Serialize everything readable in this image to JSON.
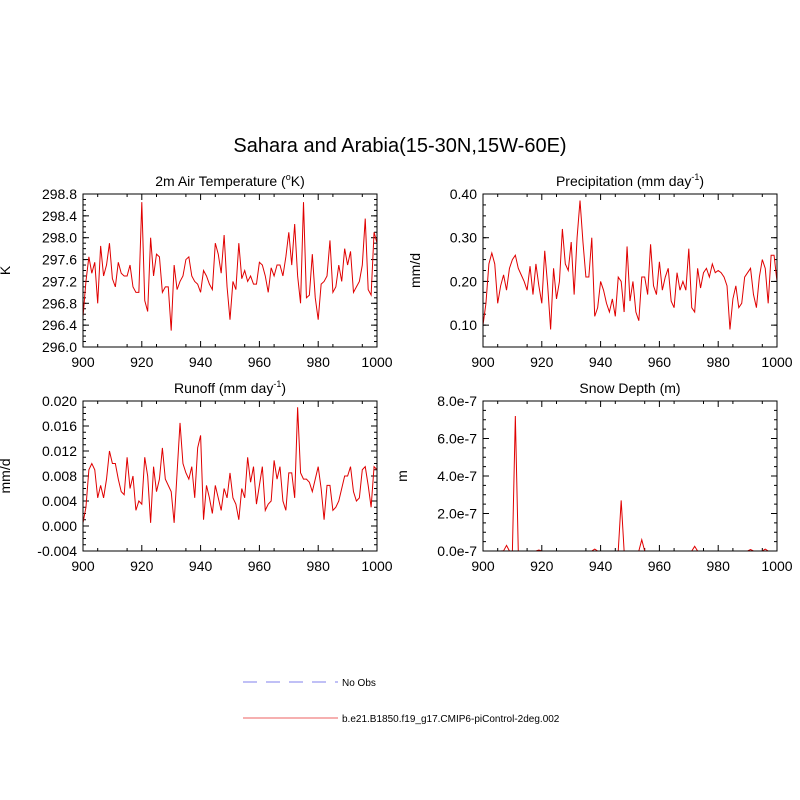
{
  "title": "Sahara and Arabia(15-30N,15W-60E)",
  "colors": {
    "model": "#e00000",
    "obs": "#9a9af0",
    "axis": "#000000"
  },
  "legend": {
    "obs_label": "No Obs",
    "model_label": "b.e21.B1850.f19_g17.CMIP6-piControl-2deg.002"
  },
  "chart_data": [
    {
      "type": "line",
      "title": "2m Air Temperature (",
      "title_sup": "o",
      "title_post": "K)",
      "ylabel": "K",
      "xlim": [
        900,
        1000
      ],
      "ylim": [
        296.0,
        298.8
      ],
      "xticks": [
        "900",
        "920",
        "940",
        "960",
        "980",
        "1000"
      ],
      "yticks": [
        "296.0",
        "296.4",
        "296.8",
        "297.2",
        "297.6",
        "298.0",
        "298.4",
        "298.8"
      ],
      "series": [
        {
          "x": [
            900,
            901,
            902,
            903,
            904,
            905,
            906,
            907,
            908,
            909,
            910,
            911,
            912,
            913,
            914,
            915,
            916,
            917,
            918,
            919,
            920,
            921,
            922,
            923,
            924,
            925,
            926,
            927,
            928,
            929,
            930,
            931,
            932,
            933,
            934,
            935,
            936,
            937,
            938,
            939,
            940,
            941,
            942,
            943,
            944,
            945,
            946,
            947,
            948,
            949,
            950,
            951,
            952,
            953,
            954,
            955,
            956,
            957,
            958,
            959,
            960,
            961,
            962,
            963,
            964,
            965,
            966,
            967,
            968,
            969,
            970,
            971,
            972,
            973,
            974,
            975,
            976,
            977,
            978,
            979,
            980,
            981,
            982,
            983,
            984,
            985,
            986,
            987,
            988,
            989,
            990,
            991,
            992,
            993,
            994,
            995,
            996,
            997,
            998,
            999,
            1000
          ],
          "values": [
            296.55,
            297.2,
            297.65,
            297.35,
            297.55,
            296.8,
            297.85,
            297.3,
            297.5,
            297.9,
            297.25,
            297.1,
            297.55,
            297.35,
            297.3,
            297.3,
            297.5,
            297.1,
            297.0,
            297.0,
            298.65,
            296.85,
            296.65,
            298.0,
            297.3,
            297.7,
            297.65,
            297.0,
            297.1,
            297.1,
            296.3,
            297.5,
            297.05,
            297.2,
            297.3,
            297.6,
            297.65,
            297.3,
            297.2,
            297.15,
            297.0,
            297.4,
            297.3,
            297.15,
            297.05,
            297.9,
            297.7,
            297.35,
            298.05,
            297.1,
            296.5,
            297.2,
            297.05,
            297.9,
            297.25,
            297.4,
            297.2,
            297.3,
            297.15,
            297.15,
            297.55,
            297.5,
            297.3,
            297.0,
            297.45,
            297.3,
            297.5,
            297.5,
            297.3,
            297.65,
            298.1,
            297.5,
            298.25,
            297.3,
            296.8,
            298.65,
            296.9,
            296.95,
            297.7,
            296.9,
            296.5,
            297.15,
            297.2,
            297.3,
            297.95,
            297.0,
            297.1,
            297.5,
            297.2,
            297.8,
            297.5,
            297.75,
            297.0,
            297.1,
            297.2,
            297.5,
            298.35,
            297.05,
            296.95,
            298.1,
            297.9
          ]
        }
      ]
    },
    {
      "type": "line",
      "title": "Precipitation (mm day",
      "title_sup": "-1",
      "title_post": ")",
      "ylabel": "mm/d",
      "xlim": [
        900,
        1000
      ],
      "ylim": [
        0.05,
        0.4
      ],
      "xticks": [
        "900",
        "920",
        "940",
        "960",
        "980",
        "1000"
      ],
      "yticks": [
        "0.10",
        "0.20",
        "0.30",
        "0.40"
      ],
      "series": [
        {
          "x": [
            900,
            901,
            902,
            903,
            904,
            905,
            906,
            907,
            908,
            909,
            910,
            911,
            912,
            913,
            914,
            915,
            916,
            917,
            918,
            919,
            920,
            921,
            922,
            923,
            924,
            925,
            926,
            927,
            928,
            929,
            930,
            931,
            932,
            933,
            934,
            935,
            936,
            937,
            938,
            939,
            940,
            941,
            942,
            943,
            944,
            945,
            946,
            947,
            948,
            949,
            950,
            951,
            952,
            953,
            954,
            955,
            956,
            957,
            958,
            959,
            960,
            961,
            962,
            963,
            964,
            965,
            966,
            967,
            968,
            969,
            970,
            971,
            972,
            973,
            974,
            975,
            976,
            977,
            978,
            979,
            980,
            981,
            982,
            983,
            984,
            985,
            986,
            987,
            988,
            989,
            990,
            991,
            992,
            993,
            994,
            995,
            996,
            997,
            998,
            999,
            1000
          ],
          "values": [
            0.1,
            0.15,
            0.24,
            0.265,
            0.24,
            0.15,
            0.19,
            0.215,
            0.18,
            0.23,
            0.25,
            0.26,
            0.23,
            0.215,
            0.2,
            0.18,
            0.235,
            0.17,
            0.24,
            0.19,
            0.15,
            0.27,
            0.19,
            0.09,
            0.23,
            0.16,
            0.2,
            0.32,
            0.24,
            0.225,
            0.29,
            0.17,
            0.3,
            0.385,
            0.29,
            0.21,
            0.21,
            0.3,
            0.12,
            0.14,
            0.2,
            0.18,
            0.15,
            0.13,
            0.16,
            0.12,
            0.21,
            0.2,
            0.13,
            0.28,
            0.155,
            0.2,
            0.13,
            0.11,
            0.21,
            0.21,
            0.17,
            0.285,
            0.19,
            0.17,
            0.245,
            0.18,
            0.21,
            0.23,
            0.155,
            0.14,
            0.22,
            0.18,
            0.2,
            0.18,
            0.275,
            0.14,
            0.13,
            0.23,
            0.185,
            0.22,
            0.23,
            0.21,
            0.24,
            0.22,
            0.225,
            0.22,
            0.21,
            0.19,
            0.09,
            0.16,
            0.19,
            0.14,
            0.15,
            0.21,
            0.22,
            0.23,
            0.17,
            0.14,
            0.21,
            0.25,
            0.23,
            0.15,
            0.26,
            0.26,
            0.2
          ]
        }
      ]
    },
    {
      "type": "line",
      "title": "Runoff (mm day",
      "title_sup": "-1",
      "title_post": ")",
      "ylabel": "mm/d",
      "xlim": [
        900,
        1000
      ],
      "ylim": [
        -0.004,
        0.02
      ],
      "xticks": [
        "900",
        "920",
        "940",
        "960",
        "980",
        "1000"
      ],
      "yticks": [
        "-0.004",
        "0.000",
        "0.004",
        "0.008",
        "0.012",
        "0.016",
        "0.020"
      ],
      "series": [
        {
          "x": [
            900,
            901,
            902,
            903,
            904,
            905,
            906,
            907,
            908,
            909,
            910,
            911,
            912,
            913,
            914,
            915,
            916,
            917,
            918,
            919,
            920,
            921,
            922,
            923,
            924,
            925,
            926,
            927,
            928,
            929,
            930,
            931,
            932,
            933,
            934,
            935,
            936,
            937,
            938,
            939,
            940,
            941,
            942,
            943,
            944,
            945,
            946,
            947,
            948,
            949,
            950,
            951,
            952,
            953,
            954,
            955,
            956,
            957,
            958,
            959,
            960,
            961,
            962,
            963,
            964,
            965,
            966,
            967,
            968,
            969,
            970,
            971,
            972,
            973,
            974,
            975,
            976,
            977,
            978,
            979,
            980,
            981,
            982,
            983,
            984,
            985,
            986,
            987,
            988,
            989,
            990,
            991,
            992,
            993,
            994,
            995,
            996,
            997,
            998,
            999,
            1000
          ],
          "values": [
            0.0005,
            0.003,
            0.009,
            0.01,
            0.009,
            0.0045,
            0.0065,
            0.0045,
            0.0075,
            0.012,
            0.01,
            0.01,
            0.0075,
            0.0055,
            0.005,
            0.011,
            0.006,
            0.008,
            0.0025,
            0.004,
            0.0035,
            0.011,
            0.008,
            0.0005,
            0.0095,
            0.0055,
            0.0075,
            0.0125,
            0.0075,
            0.0065,
            0.0055,
            0.0005,
            0.0085,
            0.0165,
            0.01,
            0.0085,
            0.0075,
            0.0095,
            0.0045,
            0.0125,
            0.0145,
            0.001,
            0.0065,
            0.0045,
            0.002,
            0.0065,
            0.0045,
            0.0025,
            0.006,
            0.0045,
            0.0085,
            0.0045,
            0.0035,
            0.001,
            0.006,
            0.0045,
            0.011,
            0.007,
            0.0095,
            0.0035,
            0.0065,
            0.0095,
            0.0025,
            0.0035,
            0.004,
            0.0105,
            0.0075,
            0.0095,
            0.004,
            0.0025,
            0.0085,
            0.0085,
            0.0045,
            0.019,
            0.0085,
            0.0075,
            0.0075,
            0.007,
            0.0055,
            0.0075,
            0.0095,
            0.006,
            0.001,
            0.0065,
            0.0065,
            0.0025,
            0.003,
            0.004,
            0.006,
            0.008,
            0.008,
            0.0095,
            0.0055,
            0.004,
            0.0045,
            0.009,
            0.0095,
            0.0065,
            0.003,
            0.0095,
            0.009
          ]
        }
      ]
    },
    {
      "type": "line",
      "title": "Snow Depth (m)",
      "title_sup": "",
      "title_post": "",
      "ylabel": "m",
      "xlim": [
        900,
        1000
      ],
      "ylim": [
        0,
        8e-07
      ],
      "xticks": [
        "900",
        "920",
        "940",
        "960",
        "980",
        "1000"
      ],
      "yticks": [
        "0.0e-7",
        "2.0e-7",
        "4.0e-7",
        "6.0e-7",
        "8.0e-7"
      ],
      "series": [
        {
          "x": [
            900,
            901,
            902,
            903,
            904,
            905,
            906,
            907,
            908,
            909,
            910,
            911,
            912,
            913,
            914,
            915,
            916,
            917,
            918,
            919,
            920,
            921,
            922,
            923,
            924,
            925,
            926,
            927,
            928,
            929,
            930,
            931,
            932,
            933,
            934,
            935,
            936,
            937,
            938,
            939,
            940,
            941,
            942,
            943,
            944,
            945,
            946,
            947,
            948,
            949,
            950,
            951,
            952,
            953,
            954,
            955,
            956,
            957,
            958,
            959,
            960,
            961,
            962,
            963,
            964,
            965,
            966,
            967,
            968,
            969,
            970,
            971,
            972,
            973,
            974,
            975,
            976,
            977,
            978,
            979,
            980,
            981,
            982,
            983,
            984,
            985,
            986,
            987,
            988,
            989,
            990,
            991,
            992,
            993,
            994,
            995,
            996,
            997,
            998,
            999,
            1000
          ],
          "values": [
            0,
            0,
            0,
            0,
            0,
            0,
            0,
            1e-09,
            3e-08,
            0,
            0,
            7.2e-07,
            0,
            0,
            0,
            0,
            0,
            0,
            0,
            5e-09,
            0,
            0,
            0,
            0,
            0,
            0,
            0,
            0,
            0,
            0,
            0,
            0,
            0,
            0,
            0,
            0,
            0,
            0,
            1e-08,
            0,
            0,
            0,
            0,
            0,
            0,
            0,
            0,
            2.7e-07,
            0,
            0,
            0,
            0,
            0,
            0,
            6e-08,
            0,
            0,
            0,
            0,
            0,
            0,
            0,
            0,
            0,
            0,
            0,
            0,
            0,
            0,
            0,
            0,
            0,
            2.5e-08,
            0,
            0,
            0,
            0,
            0,
            0,
            0,
            0,
            0,
            0,
            0,
            0,
            0,
            0,
            0,
            0,
            0,
            0,
            8e-09,
            0,
            0,
            0,
            0,
            1e-08,
            0,
            0,
            0,
            0
          ]
        }
      ]
    }
  ]
}
